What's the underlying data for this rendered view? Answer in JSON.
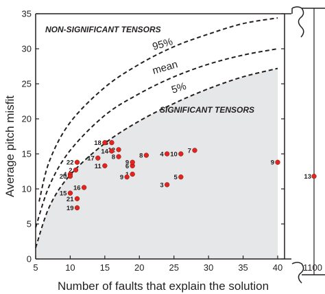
{
  "colors": {
    "significant_region": "#e6e7e8",
    "point": "#e0261f",
    "axis": "#231f20"
  },
  "chart_data": {
    "type": "scatter",
    "xlabel": "Number of faults that explain the solution",
    "ylabel": "Average pitch misfit",
    "xlim": [
      5,
      40
    ],
    "ylim": [
      0,
      35
    ],
    "x_ticks": [
      "5",
      "10",
      "15",
      "20",
      "25",
      "30",
      "35",
      "40"
    ],
    "x_break_tick": "1100",
    "y_ticks": [
      "0",
      "5",
      "10",
      "15",
      "20",
      "25",
      "30",
      "35"
    ],
    "grid": false,
    "axis_break": "between 40 and 1100 on the x axis",
    "regions": [
      {
        "label": "NON-SIGNIFICANT TENSORS",
        "position": "above the 95% curve"
      },
      {
        "label": "SIGNIFICANT TENSORS",
        "position": "below the 5% curve (shaded)"
      }
    ],
    "curves": [
      {
        "name": "95%",
        "style": "dashed",
        "points": [
          [
            5.5,
            8.2
          ],
          [
            7,
            14
          ],
          [
            10,
            19.5
          ],
          [
            15,
            24.5
          ],
          [
            20,
            27.8
          ],
          [
            25,
            30.3
          ],
          [
            30,
            32.1
          ],
          [
            35,
            33.6
          ],
          [
            40,
            34.4
          ]
        ]
      },
      {
        "name": "mean",
        "style": "dashed",
        "points": [
          [
            5,
            4.5
          ],
          [
            7,
            10.5
          ],
          [
            10,
            15.5
          ],
          [
            15,
            20.5
          ],
          [
            20,
            23.6
          ],
          [
            25,
            26
          ],
          [
            30,
            27.8
          ],
          [
            35,
            29.1
          ],
          [
            40,
            30
          ]
        ]
      },
      {
        "name": "5%",
        "style": "dashed",
        "points": [
          [
            5,
            1.6
          ],
          [
            7,
            7.5
          ],
          [
            10,
            12
          ],
          [
            15,
            16.5
          ],
          [
            20,
            19.7
          ],
          [
            25,
            22.2
          ],
          [
            30,
            24.3
          ],
          [
            35,
            26
          ],
          [
            40,
            27.2
          ]
        ]
      }
    ],
    "series": [
      {
        "points": [
          {
            "label": "1",
            "x": 19,
            "y": 12.1
          },
          {
            "label": "2",
            "x": 10.8,
            "y": 12.7
          },
          {
            "label": "3",
            "x": 16,
            "y": 16.6
          },
          {
            "label": "3",
            "x": 24,
            "y": 10.6
          },
          {
            "label": "4",
            "x": 10,
            "y": 12.1
          },
          {
            "label": "4",
            "x": 24,
            "y": 15
          },
          {
            "label": "5",
            "x": 26,
            "y": 11.7
          },
          {
            "label": "6",
            "x": 19,
            "y": 13.3
          },
          {
            "label": "7",
            "x": 28,
            "y": 15.5
          },
          {
            "label": "8",
            "x": 17,
            "y": 14.6
          },
          {
            "label": "8",
            "x": 21,
            "y": 14.8
          },
          {
            "label": "9",
            "x": 18.2,
            "y": 11.7
          },
          {
            "label": "9",
            "x": 19,
            "y": 13.8
          },
          {
            "label": "9",
            "x": 40,
            "y": 13.8
          },
          {
            "label": "10",
            "x": 26,
            "y": 15
          },
          {
            "label": "11",
            "x": 15,
            "y": 13.3
          },
          {
            "label": "12",
            "x": 17,
            "y": 15.6
          },
          {
            "label": "13",
            "x": 1100,
            "y": 11.8
          },
          {
            "label": "14",
            "x": 16,
            "y": 15.4
          },
          {
            "label": "15",
            "x": 10,
            "y": 9.4
          },
          {
            "label": "16",
            "x": 12,
            "y": 10.2
          },
          {
            "label": "17",
            "x": 14,
            "y": 14.4
          },
          {
            "label": "18",
            "x": 15,
            "y": 16.6
          },
          {
            "label": "19",
            "x": 11,
            "y": 7.3
          },
          {
            "label": "20",
            "x": 10,
            "y": 11.8
          },
          {
            "label": "21",
            "x": 11,
            "y": 8.6
          },
          {
            "label": "22",
            "x": 11,
            "y": 13.8
          }
        ]
      }
    ]
  }
}
